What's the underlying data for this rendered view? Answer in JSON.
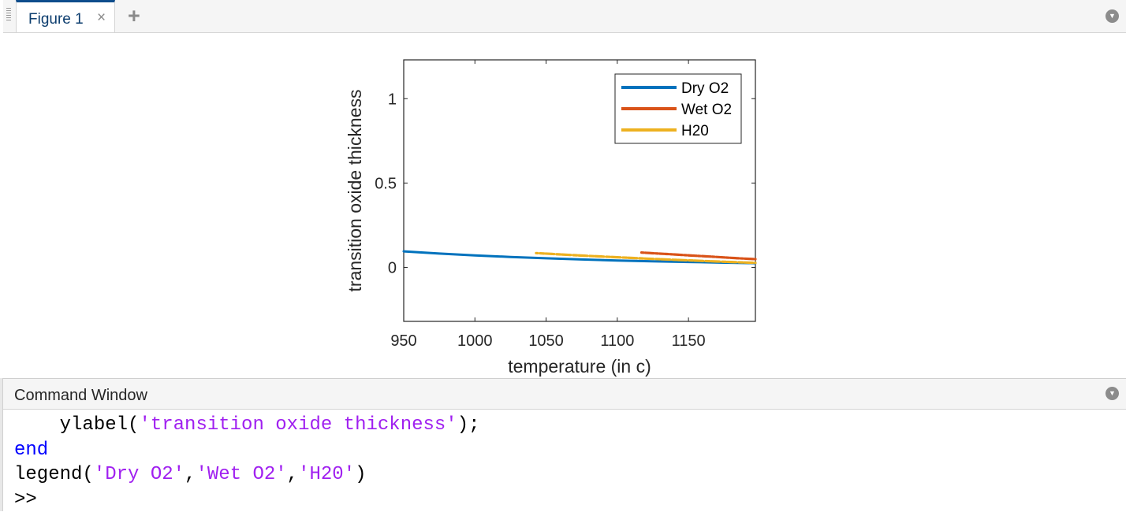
{
  "figure_window": {
    "tab_label": "Figure 1",
    "tab_close_glyph": "×",
    "add_tab_glyph": "+"
  },
  "chart_data": {
    "type": "line",
    "title": "",
    "xlabel": "temperature (in c)",
    "ylabel": "transition oxide thickness",
    "xlim": [
      950,
      1197
    ],
    "ylim": [
      -0.32,
      1.23
    ],
    "xticks": [
      950,
      1000,
      1050,
      1100,
      1150
    ],
    "yticks": [
      0,
      0.5,
      1
    ],
    "xtick_labels": [
      "950",
      "1000",
      "1050",
      "1100",
      "1150"
    ],
    "ytick_labels": [
      "0",
      "0.5",
      "1"
    ],
    "grid": false,
    "legend_position": "top-right",
    "series": [
      {
        "name": "Dry O2",
        "color": "#0072bd",
        "style": "solid",
        "x": [
          950,
          975,
          1000,
          1025,
          1050,
          1075,
          1100,
          1125,
          1150,
          1175,
          1197
        ],
        "y": [
          0.095,
          0.082,
          0.071,
          0.062,
          0.054,
          0.047,
          0.041,
          0.036,
          0.032,
          0.028,
          0.025
        ]
      },
      {
        "name": "Wet O2",
        "color": "#d95319",
        "style": "dotted",
        "x": [
          1117,
          1125,
          1135,
          1145,
          1155,
          1165,
          1175,
          1185,
          1197
        ],
        "y": [
          0.088,
          0.084,
          0.079,
          0.074,
          0.069,
          0.064,
          0.059,
          0.054,
          0.049
        ]
      },
      {
        "name": "H20",
        "color": "#edb120",
        "style": "dotted",
        "x": [
          1043,
          1060,
          1080,
          1100,
          1120,
          1140,
          1160,
          1180,
          1197
        ],
        "y": [
          0.085,
          0.077,
          0.068,
          0.06,
          0.052,
          0.045,
          0.038,
          0.032,
          0.027
        ]
      }
    ]
  },
  "command_window": {
    "title": "Command Window",
    "lines": {
      "l1_pre": "    ylabel(",
      "l1_str": "'transition oxide thickness'",
      "l1_post": ");",
      "l2_kw": "end",
      "l3_pre": "legend(",
      "l3_s1": "'Dry O2'",
      "l3_s2": "'Wet O2'",
      "l3_s3": "'H20'",
      "l3_sep": ",",
      "l3_post": ")",
      "prompt": ">>"
    }
  }
}
